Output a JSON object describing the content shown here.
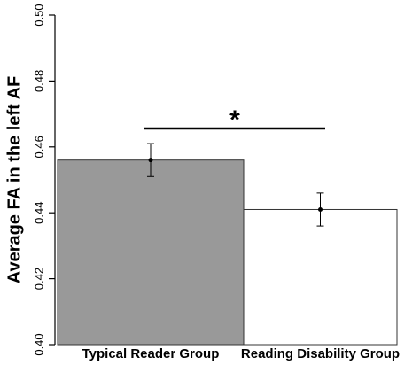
{
  "chart_data": {
    "type": "bar",
    "y_label": "Average FA in the left AF",
    "categories": [
      "Typical Reader Group",
      "Reading Disability Group"
    ],
    "values": [
      0.456,
      0.441
    ],
    "errors": [
      0.005,
      0.005
    ],
    "colors": [
      "#999999",
      "#ffffff"
    ],
    "ylim": [
      0.4,
      0.5
    ],
    "yticks": [
      {
        "value": 0.4,
        "label": "0.40"
      },
      0.42,
      0.44,
      0.46,
      0.48,
      {
        "value": 0.5,
        "label": "0.50"
      }
    ],
    "annotation": "*"
  }
}
